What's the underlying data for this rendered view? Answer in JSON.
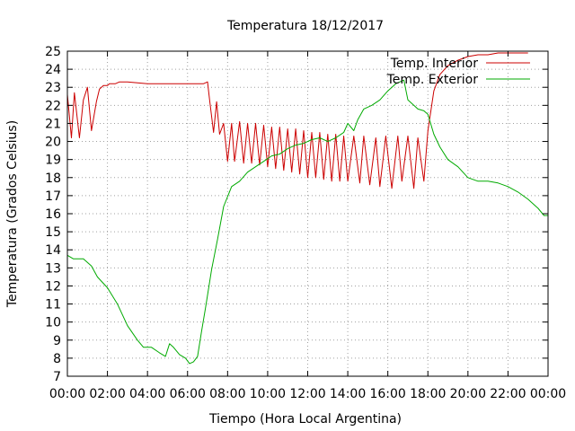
{
  "chart_data": {
    "type": "line",
    "title": "Temperatura 18/12/2017",
    "xlabel": "Tiempo (Hora Local Argentina)",
    "ylabel": "Temperatura (Grados Celsius)",
    "xlim": [
      0,
      24
    ],
    "ylim": [
      7,
      25
    ],
    "x_tick_labels": [
      "00:00",
      "02:00",
      "04:00",
      "06:00",
      "08:00",
      "10:00",
      "12:00",
      "14:00",
      "16:00",
      "18:00",
      "20:00",
      "22:00",
      "00:00"
    ],
    "y_tick_labels": [
      "7",
      "8",
      "9",
      "10",
      "11",
      "12",
      "13",
      "14",
      "15",
      "16",
      "17",
      "18",
      "19",
      "20",
      "21",
      "22",
      "23",
      "24",
      "25"
    ],
    "grid": true,
    "legend_position": "top-right",
    "series": [
      {
        "name": "Temp. Interior",
        "color": "#cc0000",
        "x": [
          0,
          0.2,
          0.35,
          0.6,
          0.8,
          1.0,
          1.2,
          1.45,
          1.6,
          1.8,
          2.0,
          2.1,
          2.4,
          2.6,
          3,
          4,
          5,
          6,
          6.8,
          7.0,
          7.1,
          7.3,
          7.45,
          7.6,
          7.8,
          8.0,
          8.2,
          8.35,
          8.6,
          8.8,
          9.0,
          9.2,
          9.4,
          9.6,
          9.8,
          10.0,
          10.2,
          10.4,
          10.6,
          10.8,
          11.0,
          11.2,
          11.4,
          11.6,
          11.8,
          12.0,
          12.2,
          12.4,
          12.6,
          12.8,
          13.0,
          13.2,
          13.4,
          13.6,
          13.8,
          14.0,
          14.3,
          14.6,
          14.8,
          15.1,
          15.4,
          15.6,
          15.9,
          16.2,
          16.5,
          16.7,
          17.0,
          17.3,
          17.5,
          17.8,
          18.0,
          18.3,
          18.6,
          19,
          19.5,
          20,
          20.5,
          21,
          21.5,
          22,
          22.5,
          23
        ],
        "y": [
          22.6,
          20.2,
          22.7,
          20.2,
          22.3,
          23.0,
          20.6,
          22.2,
          22.9,
          23.1,
          23.1,
          23.2,
          23.2,
          23.3,
          23.3,
          23.2,
          23.2,
          23.2,
          23.2,
          23.3,
          22.3,
          20.5,
          22.2,
          20.4,
          21.0,
          18.9,
          21.0,
          18.9,
          21.1,
          18.8,
          21.0,
          18.8,
          21.0,
          18.7,
          20.9,
          18.6,
          20.8,
          18.5,
          20.8,
          18.4,
          20.7,
          18.3,
          20.7,
          18.2,
          20.6,
          18.0,
          20.5,
          18.0,
          20.5,
          17.9,
          20.4,
          17.8,
          20.4,
          17.8,
          20.3,
          17.8,
          20.3,
          17.7,
          20.3,
          17.6,
          20.2,
          17.5,
          20.3,
          17.4,
          20.3,
          17.8,
          20.3,
          17.4,
          20.2,
          17.8,
          20.6,
          22.8,
          23.7,
          24.2,
          24.5,
          24.7,
          24.8,
          24.8,
          24.9,
          24.9,
          24.9,
          24.9
        ]
      },
      {
        "name": "Temp. Exterior",
        "color": "#00aa00",
        "x": [
          0,
          0.3,
          0.8,
          1.2,
          1.5,
          2.0,
          2.5,
          3.0,
          3.5,
          3.8,
          4.2,
          4.6,
          4.9,
          5.1,
          5.3,
          5.6,
          5.9,
          6.1,
          6.3,
          6.5,
          6.7,
          6.9,
          7.2,
          7.5,
          7.8,
          8.2,
          8.6,
          9.0,
          9.4,
          9.8,
          10.2,
          10.6,
          11.0,
          11.4,
          11.8,
          12.2,
          12.6,
          13.0,
          13.4,
          13.8,
          14.0,
          14.3,
          14.5,
          14.8,
          15.2,
          15.6,
          16.0,
          16.4,
          16.8,
          17.0,
          17.3,
          17.5,
          17.8,
          18.0,
          18.3,
          18.6,
          19.0,
          19.5,
          20.0,
          20.5,
          21.0,
          21.5,
          22.0,
          22.5,
          23.0,
          23.5,
          23.8,
          24
        ],
        "y": [
          13.7,
          13.5,
          13.5,
          13.1,
          12.5,
          11.9,
          11.0,
          9.8,
          9.0,
          8.6,
          8.6,
          8.3,
          8.1,
          8.8,
          8.6,
          8.2,
          8.0,
          7.7,
          7.8,
          8.1,
          9.5,
          10.8,
          12.9,
          14.6,
          16.4,
          17.5,
          17.8,
          18.3,
          18.6,
          18.9,
          19.2,
          19.3,
          19.6,
          19.8,
          19.9,
          20.1,
          20.2,
          20.0,
          20.2,
          20.5,
          21.0,
          20.6,
          21.2,
          21.8,
          22.0,
          22.3,
          22.8,
          23.2,
          23.4,
          22.3,
          22.0,
          21.8,
          21.7,
          21.5,
          20.4,
          19.7,
          19.0,
          18.6,
          18.0,
          17.8,
          17.8,
          17.7,
          17.5,
          17.2,
          16.8,
          16.3,
          15.9,
          15.9
        ]
      }
    ]
  }
}
